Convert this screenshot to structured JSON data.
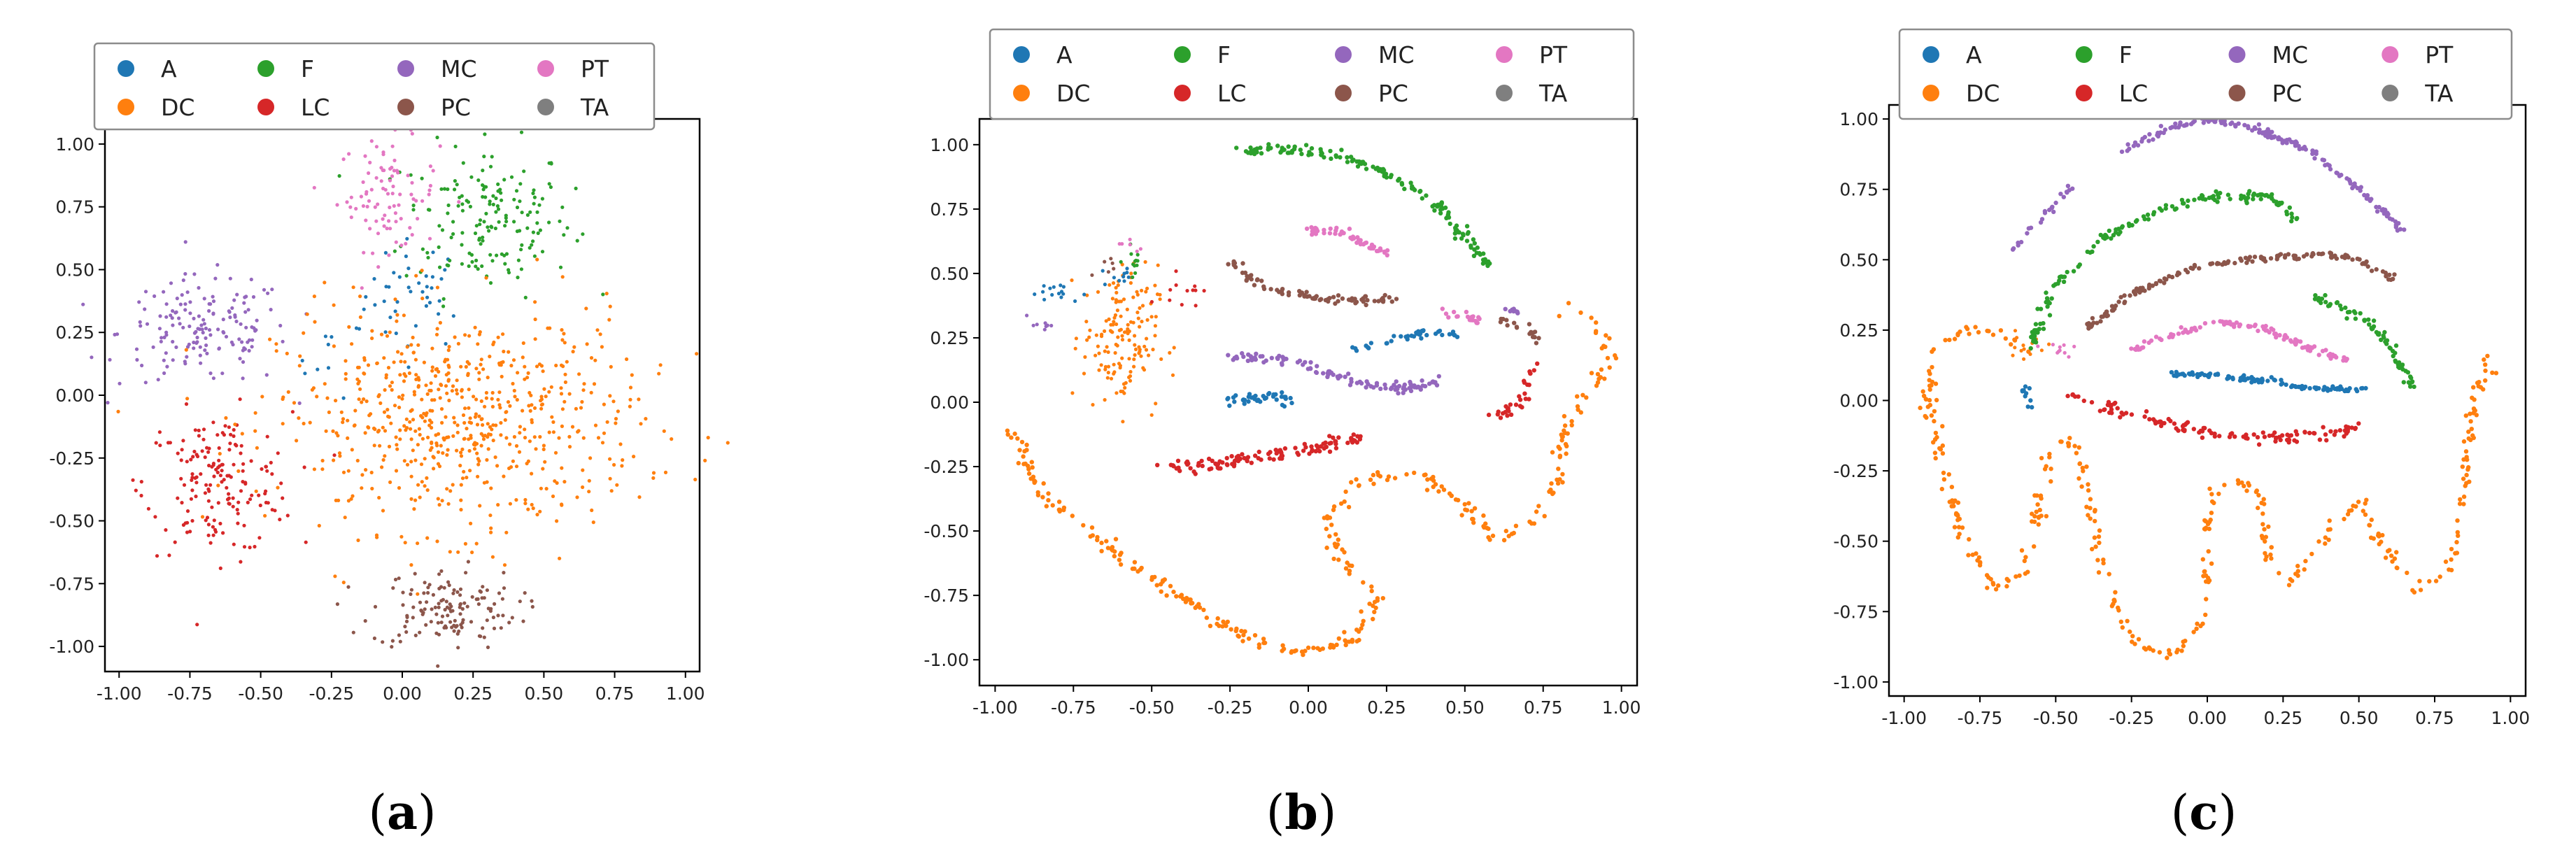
{
  "colors": {
    "A": "#1f77b4",
    "DC": "#ff7f0e",
    "F": "#2ca02c",
    "LC": "#d62728",
    "MC": "#9467bd",
    "PC": "#8c564b",
    "PT": "#e377c2",
    "TA": "#7f7f7f"
  },
  "chart_data": [
    {
      "type": "scatter",
      "caption": "a",
      "legend": {
        "placement": "top",
        "entries": [
          "A",
          "F",
          "MC",
          "PT",
          "DC",
          "LC",
          "PC",
          "TA"
        ]
      },
      "xlim": [
        -1.05,
        1.05
      ],
      "ylim": [
        -1.1,
        1.1
      ],
      "xticks": [
        "-1.00",
        "-0.75",
        "-0.50",
        "-0.25",
        "0.00",
        "0.25",
        "0.50",
        "0.75",
        "1.00"
      ],
      "yticks": [
        "1.00",
        "0.75",
        "0.50",
        "0.25",
        "0.00",
        "-0.25",
        "-0.50",
        "-0.75",
        "-1.00"
      ],
      "grid": false,
      "clusters": [
        {
          "class": "A",
          "center": [
            0.05,
            0.4
          ],
          "spread": [
            0.09,
            0.11
          ],
          "points": 40
        },
        {
          "class": "A",
          "center": [
            -0.25,
            0.15
          ],
          "spread": [
            0.06,
            0.08
          ],
          "points": 10
        },
        {
          "class": "F",
          "center": [
            0.3,
            0.7
          ],
          "spread": [
            0.15,
            0.15
          ],
          "points": 170
        },
        {
          "class": "PT",
          "center": [
            -0.05,
            0.8
          ],
          "spread": [
            0.09,
            0.11
          ],
          "points": 90
        },
        {
          "class": "MC",
          "center": [
            -0.7,
            0.25
          ],
          "spread": [
            0.15,
            0.11
          ],
          "points": 160
        },
        {
          "class": "LC",
          "center": [
            -0.65,
            -0.35
          ],
          "spread": [
            0.13,
            0.14
          ],
          "points": 170
        },
        {
          "class": "PC",
          "center": [
            0.15,
            -0.85
          ],
          "spread": [
            0.13,
            0.08
          ],
          "points": 140
        },
        {
          "class": "DC",
          "center": [
            0.2,
            -0.1
          ],
          "spread": [
            0.32,
            0.22
          ],
          "points": 650
        }
      ]
    },
    {
      "type": "scatter",
      "caption": "b",
      "legend": {
        "placement": "top",
        "entries": [
          "A",
          "F",
          "MC",
          "PT",
          "DC",
          "LC",
          "PC",
          "TA"
        ]
      },
      "xlim": [
        -1.05,
        1.05
      ],
      "ylim": [
        -1.1,
        1.1
      ],
      "xticks": [
        "-1.00",
        "-0.75",
        "-0.50",
        "-0.25",
        "0.00",
        "0.25",
        "0.50",
        "0.75",
        "1.00"
      ],
      "yticks": [
        "1.00",
        "0.75",
        "0.50",
        "0.25",
        "0.00",
        "-0.25",
        "-0.50",
        "-0.75",
        "-1.00"
      ],
      "grid": false,
      "curves": [
        {
          "class": "DC",
          "points": [
            [
              -0.95,
              -0.1
            ],
            [
              -0.85,
              -0.35
            ],
            [
              -0.65,
              -0.55
            ],
            [
              -0.45,
              -0.72
            ],
            [
              -0.25,
              -0.88
            ],
            [
              -0.05,
              -0.97
            ],
            [
              0.15,
              -0.93
            ],
            [
              0.23,
              -0.75
            ],
            [
              0.1,
              -0.6
            ],
            [
              0.05,
              -0.45
            ],
            [
              0.15,
              -0.3
            ],
            [
              0.35,
              -0.27
            ],
            [
              0.5,
              -0.4
            ],
            [
              0.6,
              -0.53
            ],
            [
              0.72,
              -0.47
            ],
            [
              0.8,
              -0.3
            ],
            [
              0.82,
              -0.1
            ],
            [
              0.9,
              0.05
            ],
            [
              0.97,
              0.17
            ],
            [
              0.92,
              0.3
            ],
            [
              0.8,
              0.38
            ]
          ],
          "n": 320,
          "jitter": 0.012
        },
        {
          "class": "F",
          "points": [
            [
              -0.2,
              0.98
            ],
            [
              0.0,
              0.97
            ],
            [
              0.2,
              0.92
            ],
            [
              0.4,
              0.78
            ],
            [
              0.58,
              0.53
            ]
          ],
          "n": 150,
          "jitter": 0.01
        },
        {
          "class": "PT",
          "points": [
            [
              0.0,
              0.67
            ],
            [
              0.1,
              0.66
            ],
            [
              0.25,
              0.58
            ]
          ],
          "n": 50,
          "jitter": 0.008
        },
        {
          "class": "PC",
          "points": [
            [
              -0.25,
              0.55
            ],
            [
              -0.15,
              0.45
            ],
            [
              0.05,
              0.4
            ],
            [
              0.27,
              0.4
            ]
          ],
          "n": 80,
          "jitter": 0.01
        },
        {
          "class": "MC",
          "points": [
            [
              -0.25,
              0.18
            ],
            [
              -0.05,
              0.16
            ],
            [
              0.15,
              0.08
            ],
            [
              0.3,
              0.05
            ],
            [
              0.45,
              0.1
            ]
          ],
          "n": 110,
          "jitter": 0.01
        },
        {
          "class": "A",
          "points": [
            [
              -0.25,
              0.0
            ],
            [
              -0.12,
              0.02
            ],
            [
              -0.05,
              0.01
            ]
          ],
          "n": 40,
          "jitter": 0.01
        },
        {
          "class": "A",
          "points": [
            [
              0.15,
              0.2
            ],
            [
              0.25,
              0.24
            ],
            [
              0.38,
              0.27
            ],
            [
              0.48,
              0.26
            ]
          ],
          "n": 40,
          "jitter": 0.008
        },
        {
          "class": "PT",
          "points": [
            [
              0.43,
              0.35
            ],
            [
              0.55,
              0.32
            ]
          ],
          "n": 20,
          "jitter": 0.008
        },
        {
          "class": "MC",
          "points": [
            [
              0.63,
              0.36
            ],
            [
              0.68,
              0.35
            ]
          ],
          "n": 10,
          "jitter": 0.006
        },
        {
          "class": "LC",
          "points": [
            [
              -0.45,
              -0.25
            ],
            [
              -0.3,
              -0.24
            ],
            [
              -0.1,
              -0.2
            ],
            [
              0.05,
              -0.17
            ],
            [
              0.17,
              -0.13
            ]
          ],
          "n": 110,
          "jitter": 0.012
        },
        {
          "class": "LC",
          "points": [
            [
              0.72,
              0.15
            ],
            [
              0.68,
              -0.02
            ],
            [
              0.58,
              -0.07
            ]
          ],
          "n": 30,
          "jitter": 0.01
        },
        {
          "class": "PC",
          "points": [
            [
              0.6,
              0.32
            ],
            [
              0.7,
              0.28
            ],
            [
              0.75,
              0.22
            ]
          ],
          "n": 18,
          "jitter": 0.01
        }
      ],
      "clusters": [
        {
          "class": "DC",
          "center": [
            -0.6,
            0.25
          ],
          "spread": [
            0.06,
            0.14
          ],
          "points": 150
        },
        {
          "class": "A",
          "center": [
            -0.82,
            0.42
          ],
          "spread": [
            0.05,
            0.02
          ],
          "points": 15
        },
        {
          "class": "A",
          "center": [
            -0.6,
            0.5
          ],
          "spread": [
            0.03,
            0.03
          ],
          "points": 10
        },
        {
          "class": "F",
          "center": [
            -0.55,
            0.55
          ],
          "spread": [
            0.02,
            0.03
          ],
          "points": 12
        },
        {
          "class": "MC",
          "center": [
            -0.85,
            0.3
          ],
          "spread": [
            0.02,
            0.02
          ],
          "points": 8
        },
        {
          "class": "LC",
          "center": [
            -0.4,
            0.45
          ],
          "spread": [
            0.03,
            0.04
          ],
          "points": 12
        },
        {
          "class": "PC",
          "center": [
            -0.65,
            0.52
          ],
          "spread": [
            0.02,
            0.02
          ],
          "points": 6
        },
        {
          "class": "PT",
          "center": [
            -0.57,
            0.6
          ],
          "spread": [
            0.02,
            0.02
          ],
          "points": 6
        }
      ]
    },
    {
      "type": "scatter",
      "caption": "c",
      "legend": {
        "placement": "top",
        "entries": [
          "A",
          "F",
          "MC",
          "PT",
          "DC",
          "LC",
          "PC",
          "TA"
        ]
      },
      "xlim": [
        -1.05,
        1.05
      ],
      "ylim": [
        -1.05,
        1.05
      ],
      "xticks": [
        "-1.00",
        "-0.75",
        "-0.50",
        "-0.25",
        "0.00",
        "0.25",
        "0.50",
        "0.75",
        "1.00"
      ],
      "yticks": [
        "1.00",
        "0.75",
        "0.50",
        "0.25",
        "0.00",
        "-0.25",
        "-0.50",
        "-0.75",
        "-1.00"
      ],
      "grid": false,
      "curves": [
        {
          "class": "MC",
          "points": [
            [
              -0.65,
              0.52
            ],
            [
              -0.55,
              0.65
            ],
            [
              -0.45,
              0.76
            ]
          ],
          "n": 25,
          "jitter": 0.006
        },
        {
          "class": "MC",
          "points": [
            [
              -0.3,
              0.87
            ],
            [
              -0.15,
              0.96
            ],
            [
              0.0,
              1.0
            ],
            [
              0.15,
              0.97
            ],
            [
              0.35,
              0.88
            ],
            [
              0.5,
              0.75
            ],
            [
              0.65,
              0.6
            ]
          ],
          "n": 160,
          "jitter": 0.006
        },
        {
          "class": "F",
          "points": [
            [
              -0.58,
              0.2
            ],
            [
              -0.5,
              0.4
            ],
            [
              -0.35,
              0.57
            ],
            [
              -0.15,
              0.68
            ],
            [
              0.05,
              0.73
            ],
            [
              0.22,
              0.72
            ],
            [
              0.3,
              0.63
            ]
          ],
          "n": 150,
          "jitter": 0.008
        },
        {
          "class": "F",
          "points": [
            [
              0.35,
              0.37
            ],
            [
              0.5,
              0.3
            ],
            [
              0.6,
              0.2
            ],
            [
              0.68,
              0.05
            ]
          ],
          "n": 70,
          "jitter": 0.008
        },
        {
          "class": "PC",
          "points": [
            [
              -0.4,
              0.25
            ],
            [
              -0.25,
              0.38
            ],
            [
              -0.05,
              0.47
            ],
            [
              0.15,
              0.5
            ],
            [
              0.35,
              0.52
            ],
            [
              0.5,
              0.5
            ],
            [
              0.62,
              0.43
            ]
          ],
          "n": 150,
          "jitter": 0.006
        },
        {
          "class": "PT",
          "points": [
            [
              -0.25,
              0.18
            ],
            [
              -0.1,
              0.24
            ],
            [
              0.05,
              0.28
            ],
            [
              0.2,
              0.25
            ],
            [
              0.35,
              0.18
            ],
            [
              0.47,
              0.14
            ]
          ],
          "n": 110,
          "jitter": 0.006
        },
        {
          "class": "A",
          "points": [
            [
              -0.15,
              0.1
            ],
            [
              0.0,
              0.09
            ],
            [
              0.2,
              0.07
            ],
            [
              0.35,
              0.04
            ],
            [
              0.52,
              0.04
            ]
          ],
          "n": 100,
          "jitter": 0.005
        },
        {
          "class": "LC",
          "points": [
            [
              -0.45,
              0.02
            ],
            [
              -0.3,
              -0.04
            ],
            [
              -0.1,
              -0.09
            ],
            [
              0.1,
              -0.13
            ],
            [
              0.3,
              -0.13
            ],
            [
              0.5,
              -0.1
            ]
          ],
          "n": 120,
          "jitter": 0.01
        },
        {
          "class": "A",
          "points": [
            [
              -0.6,
              0.05
            ],
            [
              -0.58,
              -0.03
            ]
          ],
          "n": 10,
          "jitter": 0.008
        },
        {
          "class": "DC",
          "points": [
            [
              -0.6,
              0.18
            ],
            [
              -0.68,
              0.24
            ],
            [
              -0.8,
              0.26
            ],
            [
              -0.9,
              0.18
            ],
            [
              -0.92,
              0.0
            ],
            [
              -0.87,
              -0.25
            ],
            [
              -0.8,
              -0.5
            ],
            [
              -0.7,
              -0.67
            ],
            [
              -0.6,
              -0.6
            ],
            [
              -0.55,
              -0.35
            ],
            [
              -0.52,
              -0.15
            ],
            [
              -0.45,
              -0.15
            ],
            [
              -0.4,
              -0.3
            ],
            [
              -0.35,
              -0.6
            ],
            [
              -0.25,
              -0.85
            ],
            [
              -0.1,
              -0.92
            ],
            [
              0.0,
              -0.75
            ],
            [
              0.0,
              -0.45
            ],
            [
              0.02,
              -0.3
            ],
            [
              0.1,
              -0.28
            ],
            [
              0.18,
              -0.35
            ],
            [
              0.2,
              -0.55
            ],
            [
              0.27,
              -0.65
            ],
            [
              0.38,
              -0.5
            ],
            [
              0.5,
              -0.35
            ],
            [
              0.6,
              -0.55
            ],
            [
              0.7,
              -0.68
            ],
            [
              0.8,
              -0.6
            ],
            [
              0.85,
              -0.3
            ],
            [
              0.88,
              0.0
            ],
            [
              0.93,
              0.15
            ],
            [
              0.96,
              0.05
            ]
          ],
          "n": 380,
          "jitter": 0.01
        }
      ],
      "clusters": [
        {
          "class": "DC",
          "center": [
            -0.6,
            0.2
          ],
          "spread": [
            0.03,
            0.03
          ],
          "points": 15
        },
        {
          "class": "PT",
          "center": [
            -0.5,
            0.18
          ],
          "spread": [
            0.03,
            0.02
          ],
          "points": 10
        }
      ]
    }
  ],
  "captions": [
    "a",
    "b",
    "c"
  ]
}
